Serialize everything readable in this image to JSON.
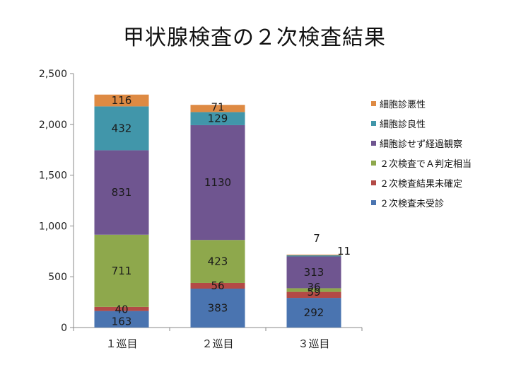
{
  "title": "甲状腺検査の２次検査結果",
  "chart_data": {
    "type": "bar",
    "stacked": true,
    "title": "甲状腺検査の２次検査結果",
    "xlabel": "",
    "ylabel": "",
    "categories": [
      "１巡目",
      "２巡目",
      "３巡目"
    ],
    "ylim": [
      0,
      2500
    ],
    "yticks": [
      0,
      500,
      1000,
      1500,
      2000,
      2500
    ],
    "ytick_labels": [
      "0",
      "500",
      "1,000",
      "1,500",
      "2,000",
      "2,500"
    ],
    "grid": false,
    "legend_position": "right",
    "series": [
      {
        "name": "２次検査未受診",
        "color": "#4a74b0",
        "values": [
          163,
          383,
          292
        ]
      },
      {
        "name": "２次検査結果未確定",
        "color": "#b34a46",
        "values": [
          40,
          56,
          59
        ]
      },
      {
        "name": "２次検査でＡ判定相当",
        "color": "#8ea84c",
        "values": [
          711,
          423,
          36
        ]
      },
      {
        "name": "細胞診せず経過観察",
        "color": "#6f5590",
        "values": [
          831,
          1130,
          313
        ]
      },
      {
        "name": "細胞診良性",
        "color": "#4196aa",
        "values": [
          432,
          129,
          11
        ]
      },
      {
        "name": "細胞診悪性",
        "color": "#de8a43",
        "values": [
          116,
          71,
          7
        ]
      }
    ]
  }
}
